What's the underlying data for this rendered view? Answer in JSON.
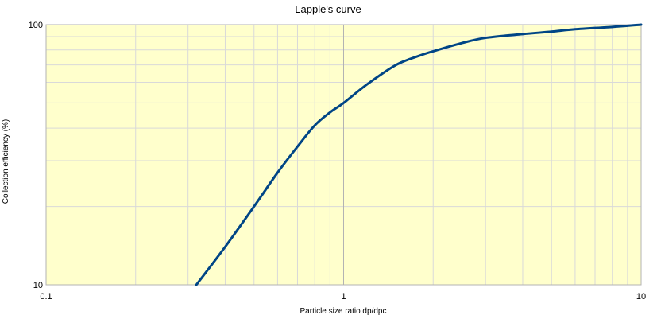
{
  "colors": {
    "plot_background": "#ffffcc",
    "grid_minor": "#d9d9d9",
    "grid_major": "#b3b3b3",
    "series_line": "#004586",
    "axis": "#b3b3b3"
  },
  "chart_data": {
    "type": "line",
    "title": "Lapple's curve",
    "xlabel": "Particle size ratio dp/dpc",
    "ylabel": "Collection efficiency (%)",
    "xscale": "log",
    "yscale": "log",
    "xlim": [
      0.1,
      10
    ],
    "ylim": [
      10,
      100
    ],
    "grid": true,
    "legend": "none",
    "x_ticks": [
      "0.1",
      "1",
      "10"
    ],
    "y_ticks": [
      "10",
      "100"
    ],
    "series": [
      {
        "x": [
          0.32,
          0.4,
          0.5,
          0.6,
          0.7,
          0.8,
          0.9,
          1.0,
          1.2,
          1.5,
          1.8,
          2.0,
          2.5,
          3.0,
          4.0,
          5.0,
          6.0,
          8.0,
          10.0
        ],
        "y": [
          10,
          14,
          20,
          27,
          34,
          41,
          46,
          50,
          59,
          70,
          76,
          79,
          85,
          89,
          92,
          94,
          96,
          98,
          100
        ]
      }
    ]
  }
}
